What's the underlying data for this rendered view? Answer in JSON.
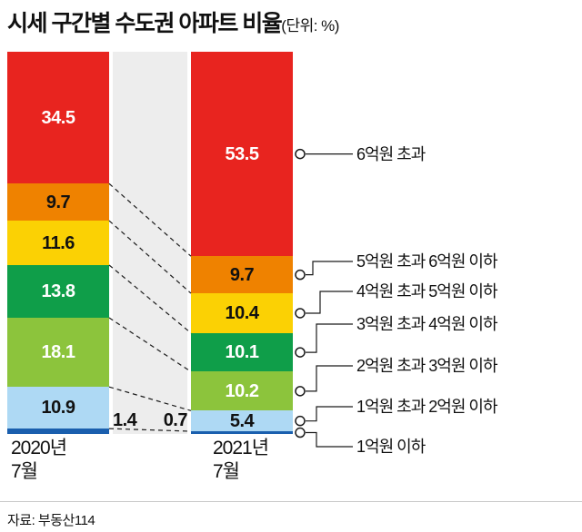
{
  "title": "시세 구간별 수도권 아파트 비율",
  "unit": "(단위: %)",
  "source": "자료: 부동산114",
  "chart_data": {
    "type": "bar",
    "stacked": true,
    "orientation": "vertical",
    "title": "시세 구간별 수도권 아파트 비율",
    "unit": "%",
    "ylim": [
      0,
      100
    ],
    "categories": [
      "6억원 초과",
      "5억원 초과 6억원 이하",
      "4억원 초과 5억원 이하",
      "3억원 초과 4억원 이하",
      "2억원 초과 3억원 이하",
      "1억원 초과 2억원 이하",
      "1억원 이하"
    ],
    "colors": [
      "#e8241f",
      "#ef8200",
      "#fbd104",
      "#0f9e49",
      "#8cc43c",
      "#aed9f4",
      "#1a5fae"
    ],
    "value_text_colors": [
      "#ffffff",
      "#111111",
      "#111111",
      "#ffffff",
      "#ffffff",
      "#111111",
      "#111111"
    ],
    "series": [
      {
        "name": "2020년 7월",
        "x_label_lines": [
          "2020년",
          "7월"
        ],
        "values": [
          34.5,
          9.7,
          11.6,
          13.8,
          18.1,
          10.9,
          1.4
        ]
      },
      {
        "name": "2021년 7월",
        "x_label_lines": [
          "2021년",
          "7월"
        ],
        "values": [
          53.5,
          9.7,
          10.4,
          10.1,
          10.2,
          5.4,
          0.7
        ]
      }
    ]
  }
}
